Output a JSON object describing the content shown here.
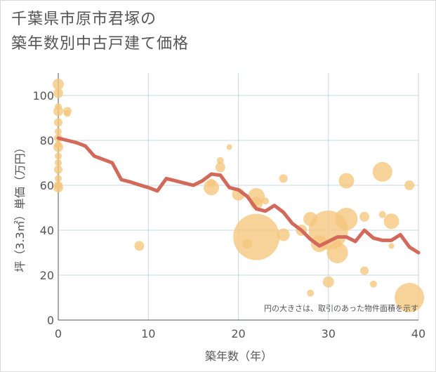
{
  "header": {
    "title_line1": "千葉県市原市君塚の",
    "title_line2": "築年数別中古戸建て価格"
  },
  "colors": {
    "bubble": "#f5c77e",
    "line": "#d2695a",
    "grid": "#c9d6e3",
    "text": "#555555"
  },
  "chart_data": {
    "type": "scatter",
    "title": "千葉県市原市君塚の築年数別中古戸建て価格",
    "xlabel": "築年数（年）",
    "ylabel": "坪（3.3㎡）単価（万円）",
    "xlim": [
      0,
      40
    ],
    "ylim": [
      0,
      110
    ],
    "xticks": [
      "0",
      "10",
      "20",
      "30",
      "40"
    ],
    "yticks": [
      "0",
      "20",
      "40",
      "60",
      "80",
      "100"
    ],
    "note": "円の大きさは、取引のあった物件面積を示す",
    "trend_line": {
      "x": [
        0,
        1,
        2,
        3,
        4,
        5,
        6,
        7,
        8,
        9,
        10,
        11,
        12,
        13,
        14,
        15,
        16,
        17,
        18,
        19,
        20,
        21,
        22,
        23,
        24,
        25,
        26,
        27,
        28,
        29,
        30,
        31,
        32,
        33,
        34,
        35,
        36,
        37,
        38,
        39,
        40
      ],
      "y": [
        81,
        80,
        79,
        77.5,
        73,
        71.5,
        70,
        62.5,
        61.5,
        60.2,
        59,
        57.5,
        63,
        62,
        61,
        60,
        62,
        65,
        64.5,
        59,
        58,
        55,
        49.5,
        48.5,
        51,
        48,
        43,
        40,
        36,
        33,
        35,
        37,
        37,
        35,
        40,
        36.5,
        35.5,
        35.5,
        38,
        32.5,
        30
      ]
    },
    "bubbles": [
      {
        "x": 0,
        "y": 105,
        "r": 8
      },
      {
        "x": 0,
        "y": 101,
        "r": 7
      },
      {
        "x": 0,
        "y": 95,
        "r": 5
      },
      {
        "x": 0,
        "y": 93,
        "r": 7
      },
      {
        "x": 0,
        "y": 88,
        "r": 6
      },
      {
        "x": 0,
        "y": 84,
        "r": 5
      },
      {
        "x": 0,
        "y": 81,
        "r": 6
      },
      {
        "x": 0,
        "y": 78,
        "r": 5
      },
      {
        "x": 0,
        "y": 77,
        "r": 7
      },
      {
        "x": 0,
        "y": 73,
        "r": 5
      },
      {
        "x": 0,
        "y": 70,
        "r": 5
      },
      {
        "x": 0,
        "y": 67,
        "r": 6
      },
      {
        "x": 0,
        "y": 63,
        "r": 5
      },
      {
        "x": 0,
        "y": 60,
        "r": 6
      },
      {
        "x": 0,
        "y": 59,
        "r": 7
      },
      {
        "x": 1,
        "y": 93,
        "r": 6
      },
      {
        "x": 1,
        "y": 92,
        "r": 5
      },
      {
        "x": 9,
        "y": 33,
        "r": 7
      },
      {
        "x": 17,
        "y": 59,
        "r": 11
      },
      {
        "x": 17,
        "y": 61,
        "r": 6
      },
      {
        "x": 18,
        "y": 68,
        "r": 7
      },
      {
        "x": 18,
        "y": 71,
        "r": 5
      },
      {
        "x": 19,
        "y": 77,
        "r": 4
      },
      {
        "x": 20,
        "y": 56,
        "r": 9
      },
      {
        "x": 21,
        "y": 34,
        "r": 7
      },
      {
        "x": 22,
        "y": 55,
        "r": 12
      },
      {
        "x": 22,
        "y": 52,
        "r": 9
      },
      {
        "x": 22,
        "y": 37,
        "r": 33
      },
      {
        "x": 23,
        "y": 53,
        "r": 5
      },
      {
        "x": 25,
        "y": 63,
        "r": 6
      },
      {
        "x": 25,
        "y": 38,
        "r": 9
      },
      {
        "x": 27,
        "y": 40,
        "r": 8
      },
      {
        "x": 28,
        "y": 45,
        "r": 10
      },
      {
        "x": 28,
        "y": 12,
        "r": 5
      },
      {
        "x": 29,
        "y": 34,
        "r": 12
      },
      {
        "x": 30,
        "y": 40,
        "r": 28
      },
      {
        "x": 30,
        "y": 17,
        "r": 8
      },
      {
        "x": 31,
        "y": 30,
        "r": 15
      },
      {
        "x": 31,
        "y": 34,
        "r": 6
      },
      {
        "x": 32,
        "y": 62,
        "r": 11
      },
      {
        "x": 32,
        "y": 45,
        "r": 16
      },
      {
        "x": 34,
        "y": 46,
        "r": 7
      },
      {
        "x": 34,
        "y": 22,
        "r": 6
      },
      {
        "x": 35,
        "y": 16,
        "r": 5
      },
      {
        "x": 36,
        "y": 66,
        "r": 14
      },
      {
        "x": 36,
        "y": 47,
        "r": 5
      },
      {
        "x": 37,
        "y": 44,
        "r": 11
      },
      {
        "x": 37,
        "y": 33,
        "r": 4
      },
      {
        "x": 39,
        "y": 60,
        "r": 7
      },
      {
        "x": 39,
        "y": 10,
        "r": 21
      }
    ]
  }
}
